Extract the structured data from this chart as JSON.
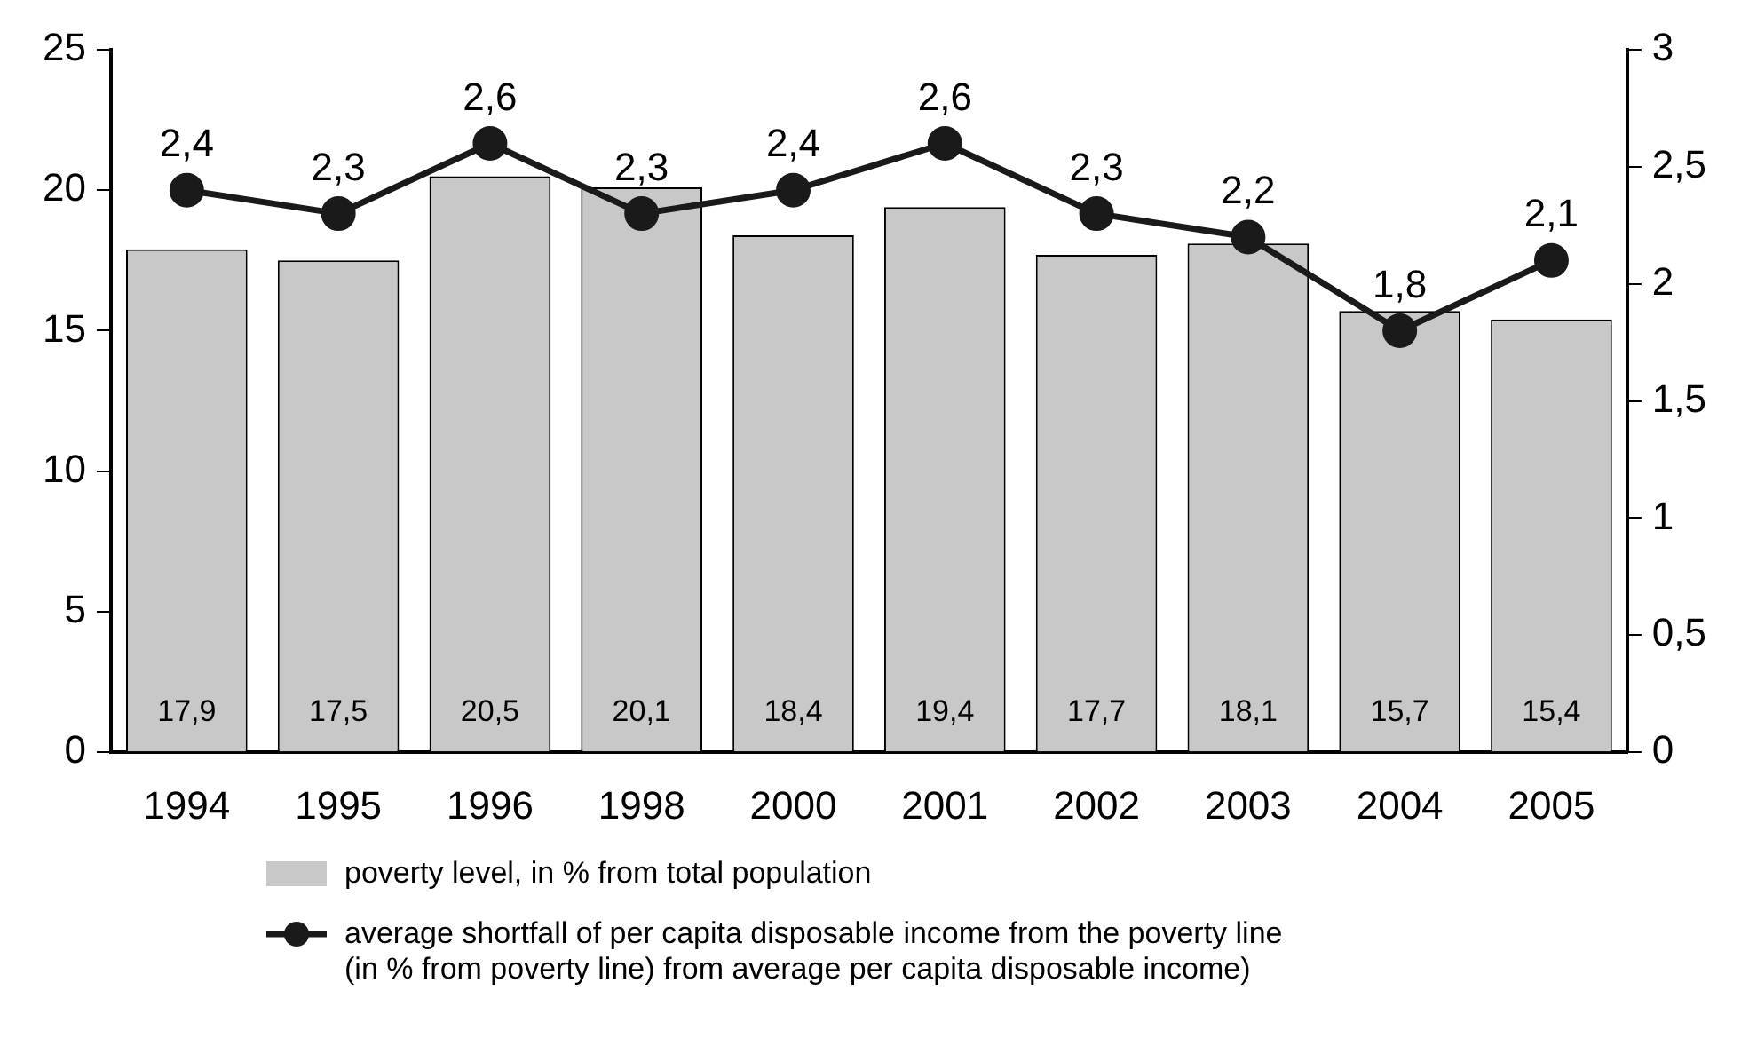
{
  "chart_data": {
    "type": "bar",
    "categories": [
      "1994",
      "1995",
      "1996",
      "1998",
      "2000",
      "2001",
      "2002",
      "2003",
      "2004",
      "2005"
    ],
    "series": [
      {
        "name": "poverty level, in % from total population",
        "color": "#c8c8c8",
        "values": [
          17.9,
          17.5,
          20.5,
          20.1,
          18.4,
          19.4,
          17.7,
          18.1,
          15.7,
          15.4
        ],
        "value_labels": [
          "17,9",
          "17,5",
          "20,5",
          "20,1",
          "18,4",
          "19,4",
          "17,7",
          "18,1",
          "15,7",
          "15,4"
        ]
      },
      {
        "name": "average shortfall of per capita disposable income from the poverty line (in % from poverty line) from average per capita disposable income)",
        "type": "line",
        "axis": "y2",
        "color": "#1a1a1a",
        "marker": "circle",
        "line_style": "solid",
        "values": [
          2.4,
          2.3,
          2.6,
          2.3,
          2.4,
          2.6,
          2.3,
          2.2,
          1.8,
          2.1
        ],
        "value_labels": [
          "2,4",
          "2,3",
          "2,6",
          "2,3",
          "2,4",
          "2,6",
          "2,3",
          "2,2",
          "1,8",
          "2,1"
        ]
      }
    ],
    "ylim": [
      0,
      25
    ],
    "yticks": [
      0,
      5,
      10,
      15,
      20,
      25
    ],
    "y2lim": [
      0,
      3
    ],
    "y2ticks": [
      0,
      {
        "value": 0.5,
        "label": "0,5"
      },
      1,
      {
        "value": 1.5,
        "label": "1,5"
      },
      2,
      {
        "value": 2.5,
        "label": "2,5"
      },
      3
    ],
    "grid": false,
    "legend": "bottom"
  }
}
